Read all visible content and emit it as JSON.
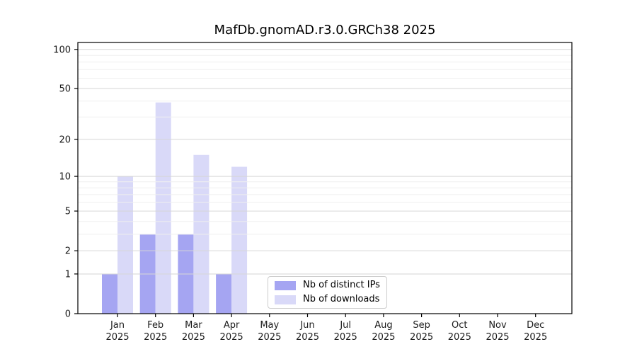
{
  "chart_data": {
    "type": "bar",
    "title": "MafDb.gnomAD.r3.0.GRCh38 2025",
    "yscale": "log1p",
    "categories": [
      "Jan",
      "Feb",
      "Mar",
      "Apr",
      "May",
      "Jun",
      "Jul",
      "Aug",
      "Sep",
      "Oct",
      "Nov",
      "Dec"
    ],
    "category_year": "2025",
    "series": [
      {
        "name": "Nb of distinct IPs",
        "color": "#a5a5f2",
        "values": [
          1,
          3,
          3,
          1,
          0,
          0,
          0,
          0,
          0,
          0,
          0,
          0
        ]
      },
      {
        "name": "Nb of downloads",
        "color": "#d9d9f8",
        "values": [
          10,
          39,
          15,
          12,
          0,
          0,
          0,
          0,
          0,
          0,
          0,
          0
        ]
      }
    ],
    "yticks_major": [
      0,
      1,
      2,
      5,
      10,
      20,
      50,
      100
    ],
    "yticks_minor": [
      3,
      4,
      6,
      7,
      8,
      9,
      30,
      40,
      60,
      70,
      80,
      90
    ],
    "ylim": [
      0,
      113
    ],
    "grid": "horizontal",
    "legend_position": "inside-bottom-center"
  },
  "colors": {
    "background": "#ffffff",
    "major_grid": "#d6d6d6",
    "minor_grid": "#efefef",
    "spine": "#000000",
    "tick_text": "#1a1a1a",
    "legend_border": "#cccccc"
  }
}
